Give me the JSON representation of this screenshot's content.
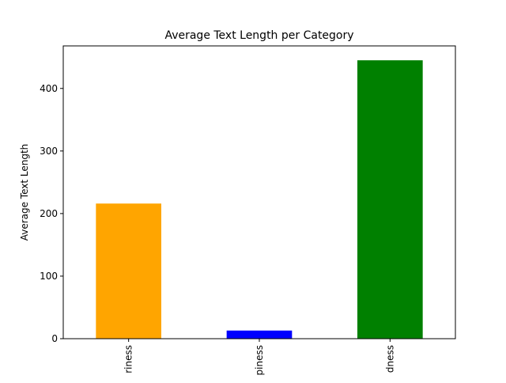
{
  "chart_data": {
    "type": "bar",
    "title": "Average Text Length per Category",
    "xlabel": "",
    "ylabel": "Average Text Length",
    "categories": [
      "riness",
      "piness",
      "dness"
    ],
    "values": [
      216,
      13,
      445
    ],
    "colors": [
      "#ffa500",
      "#0000ff",
      "#008000"
    ],
    "ylim": [
      0,
      468
    ],
    "yticks": [
      0,
      100,
      200,
      300,
      400
    ],
    "grid": false,
    "legend": "none"
  }
}
